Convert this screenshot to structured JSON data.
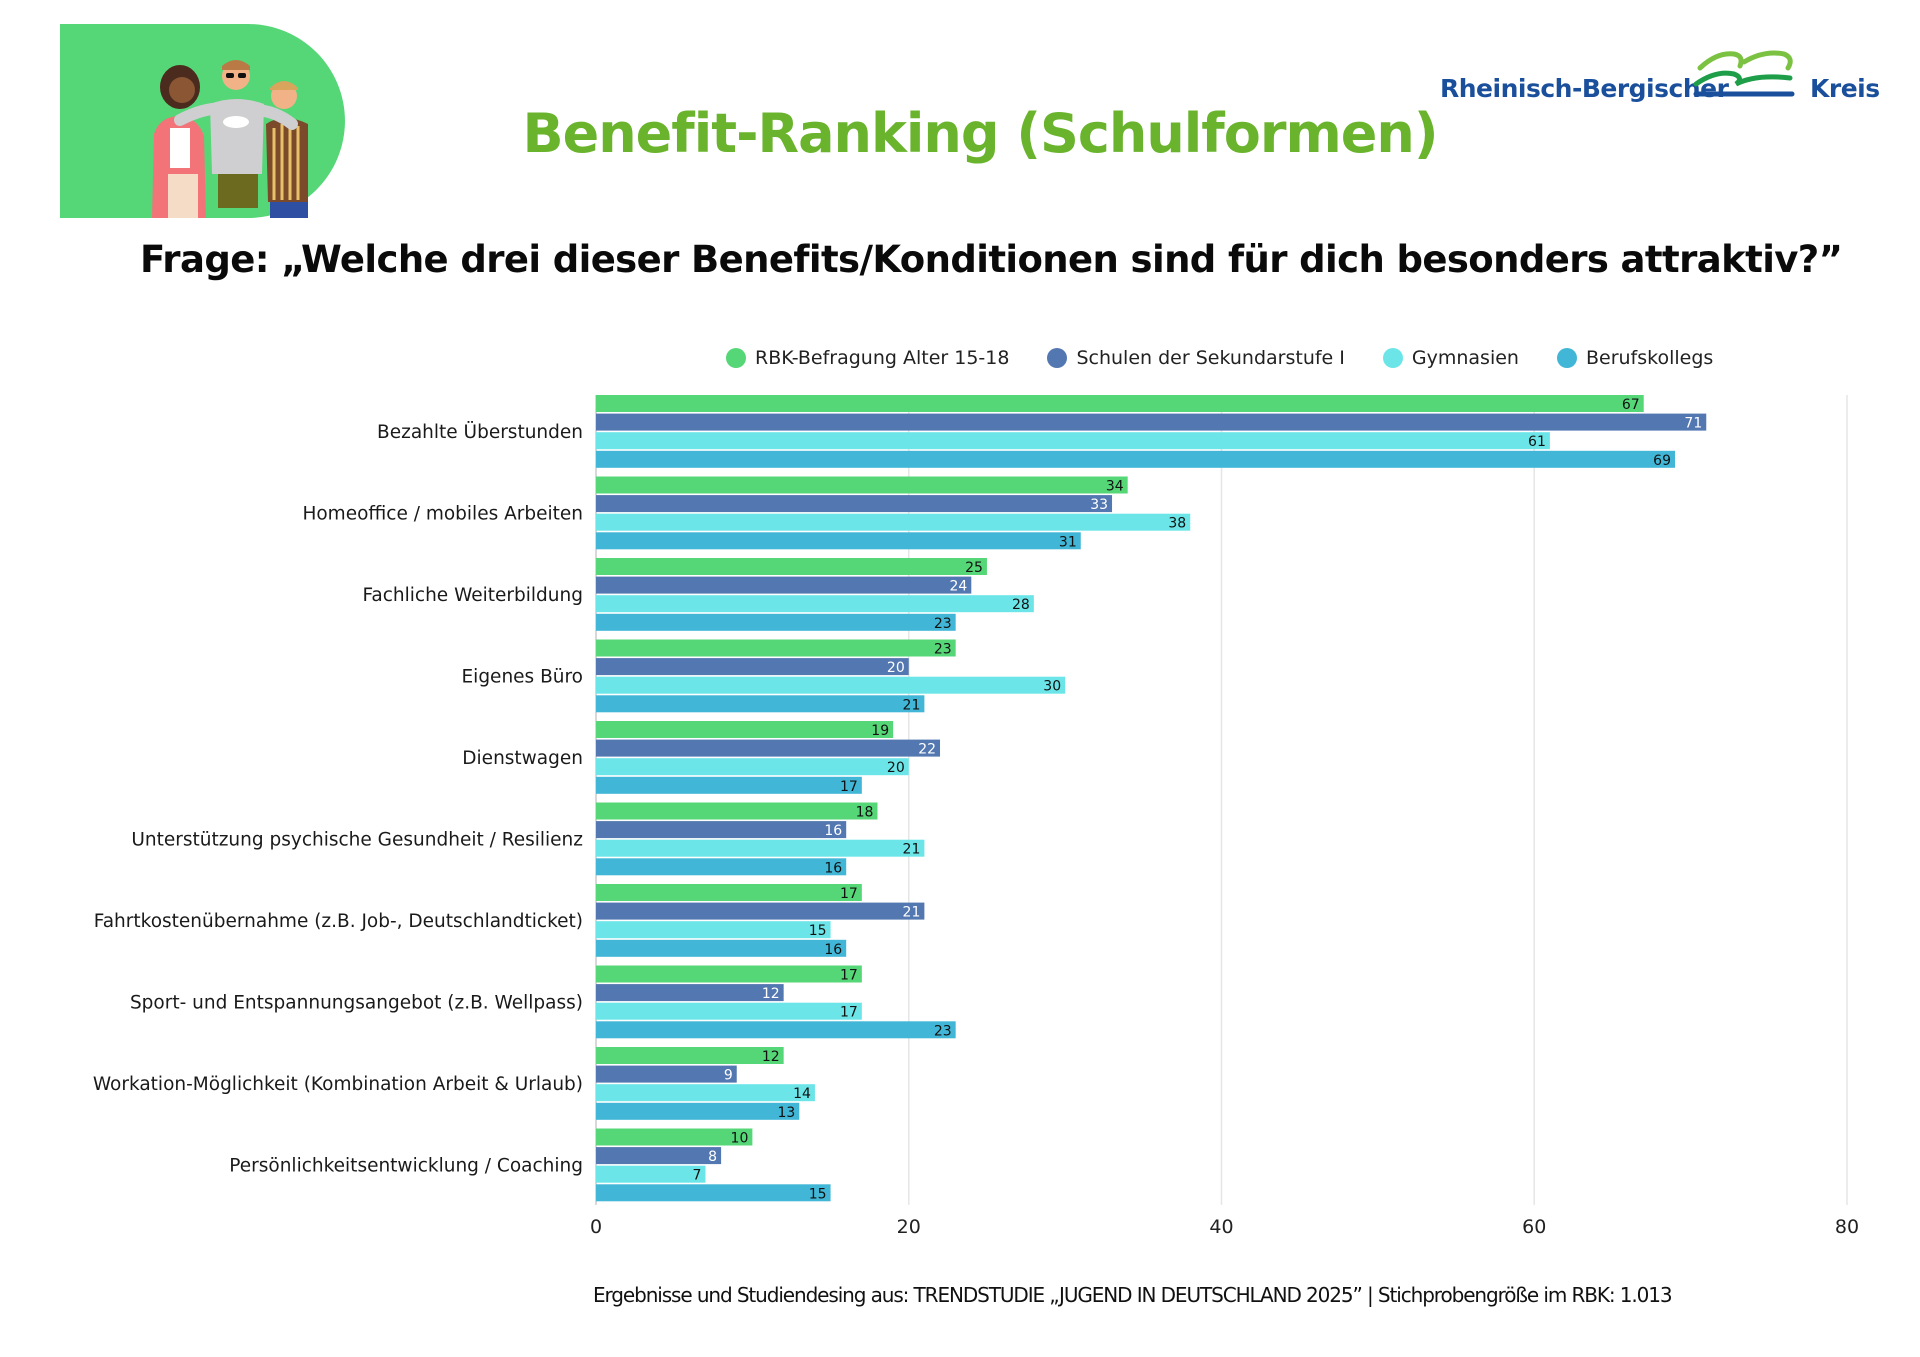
{
  "header": {
    "title": "Benefit-Ranking (Schulformen)",
    "question": "Frage: „Welche drei dieser Benefits/Konditionen sind für dich besonders attraktiv?”",
    "logo": {
      "left_text": "Rheinisch-Bergischer",
      "right_text": "Kreis"
    },
    "illustration": "group-of-three-young-people-illustration"
  },
  "footnote": "Ergebnisse und Studiendesing aus: TRENDSTUDIE „JUGEND IN DEUTSCHLAND 2025”  | Stichprobengröße im RBK:  1.013",
  "colors": {
    "title_green": "#6ab42d",
    "logo_blue": "#1a4f9c",
    "illustration_bg": "#55d677"
  },
  "chart_data": {
    "type": "bar",
    "orientation": "horizontal",
    "title": "Benefit-Ranking (Schulformen)",
    "xlabel": "",
    "ylabel": "",
    "xlim": [
      0,
      80
    ],
    "xticks": [
      0,
      20,
      40,
      60,
      80
    ],
    "grid": true,
    "legend_position": "top",
    "categories": [
      "Bezahlte Überstunden",
      "Homeoffice / mobiles Arbeiten",
      "Fachliche Weiterbildung",
      "Eigenes Büro",
      "Dienstwagen",
      "Unterstützung psychische Gesundheit / Resilienz",
      "Fahrtkostenübernahme (z.B. Job-, Deutschlandticket)",
      "Sport- und Entspannungsangebot (z.B. Wellpass)",
      "Workation-Möglichkeit (Kombination Arbeit & Urlaub)",
      "Persönlichkeitsentwicklung / Coaching"
    ],
    "series": [
      {
        "name": "RBK-Befragung Alter 15-18",
        "color": "#55d677",
        "label_color": "#111111",
        "values": [
          67,
          34,
          25,
          23,
          19,
          18,
          17,
          17,
          12,
          10
        ]
      },
      {
        "name": "Schulen der Sekundarstufe I",
        "color": "#5377b0",
        "label_color": "#ffffff",
        "values": [
          71,
          33,
          24,
          20,
          22,
          16,
          21,
          12,
          9,
          8
        ]
      },
      {
        "name": "Gymnasien",
        "color": "#6be5e8",
        "label_color": "#111111",
        "values": [
          61,
          38,
          28,
          30,
          20,
          21,
          15,
          17,
          14,
          7
        ]
      },
      {
        "name": "Berufskollegs",
        "color": "#41b6d6",
        "label_color": "#111111",
        "values": [
          69,
          31,
          23,
          21,
          17,
          16,
          16,
          23,
          13,
          15
        ]
      }
    ]
  }
}
